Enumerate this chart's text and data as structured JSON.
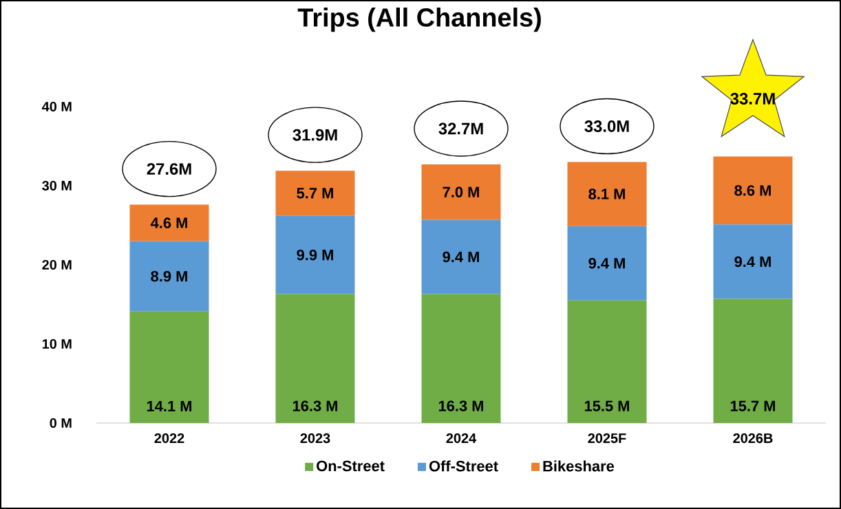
{
  "chart_data": {
    "type": "bar",
    "stacked": true,
    "title": "Trips (All Channels)",
    "categories": [
      "2022",
      "2023",
      "2024",
      "2025F",
      "2026B"
    ],
    "series": [
      {
        "name": "On-Street",
        "color": "#70ad47",
        "values": [
          14.1,
          16.3,
          16.3,
          15.5,
          15.7
        ],
        "value_labels": [
          "14.1 M",
          "16.3 M",
          "16.3 M",
          "15.5 M",
          "15.7 M"
        ]
      },
      {
        "name": "Off-Street",
        "color": "#5b9bd5",
        "values": [
          8.9,
          9.9,
          9.4,
          9.4,
          9.4
        ],
        "value_labels": [
          "8.9 M",
          "9.9 M",
          "9.4 M",
          "9.4 M",
          "9.4 M"
        ]
      },
      {
        "name": "Bikeshare",
        "color": "#ed7d31",
        "values": [
          4.6,
          5.7,
          7.0,
          8.1,
          8.6
        ],
        "value_labels": [
          "4.6 M",
          "5.7 M",
          "7.0 M",
          "8.1 M",
          "8.6 M"
        ]
      }
    ],
    "totals": [
      "27.6M",
      "31.9M",
      "32.7M",
      "33.0M",
      "33.7M"
    ],
    "ylim": [
      0,
      40
    ],
    "yticks": [
      {
        "value": 0,
        "label": "0 M"
      },
      {
        "value": 10,
        "label": "10 M"
      },
      {
        "value": 20,
        "label": "20 M"
      },
      {
        "value": 30,
        "label": "30 M"
      },
      {
        "value": 40,
        "label": "40 M"
      }
    ],
    "grid": false,
    "legend": "bottom"
  }
}
